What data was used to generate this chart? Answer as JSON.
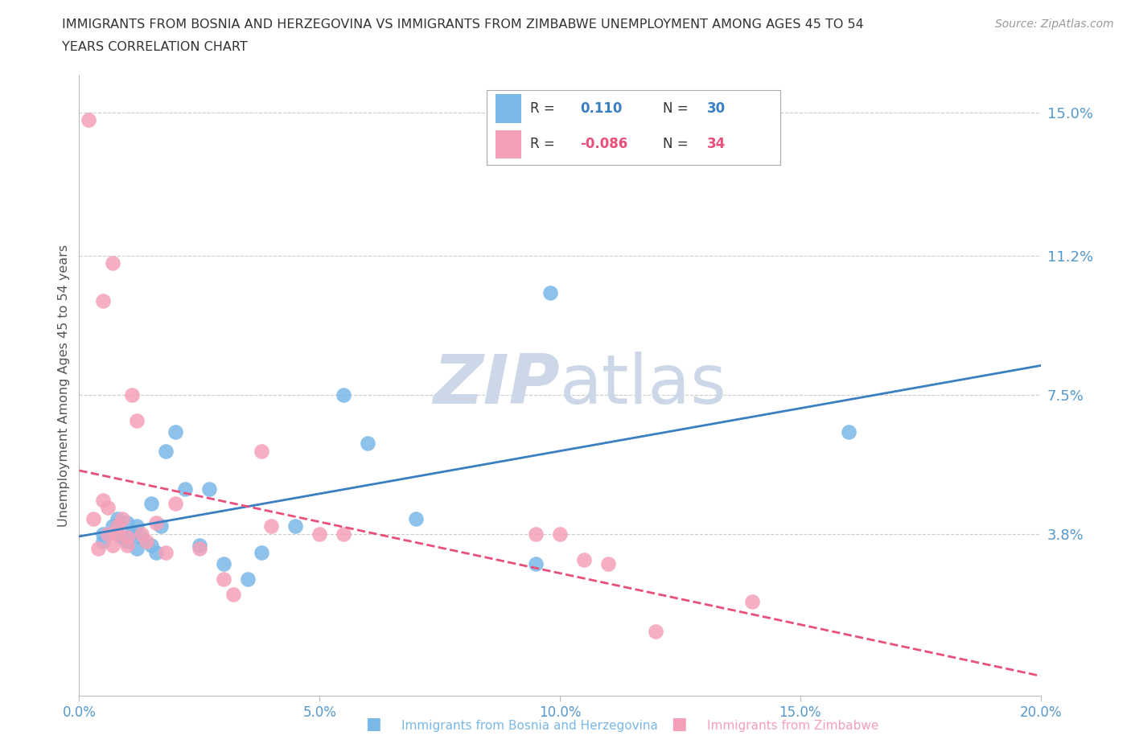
{
  "title_line1": "IMMIGRANTS FROM BOSNIA AND HERZEGOVINA VS IMMIGRANTS FROM ZIMBABWE UNEMPLOYMENT AMONG AGES 45 TO 54",
  "title_line2": "YEARS CORRELATION CHART",
  "source": "Source: ZipAtlas.com",
  "xlabel_bosnia": "Immigrants from Bosnia and Herzegovina",
  "xlabel_zimbabwe": "Immigrants from Zimbabwe",
  "ylabel": "Unemployment Among Ages 45 to 54 years",
  "xlim": [
    0.0,
    20.0
  ],
  "ylim": [
    -0.5,
    16.0
  ],
  "ytick_vals": [
    0.0,
    3.8,
    7.5,
    11.2,
    15.0
  ],
  "ytick_labels": [
    "",
    "3.8%",
    "7.5%",
    "11.2%",
    "15.0%"
  ],
  "xtick_vals": [
    0.0,
    5.0,
    10.0,
    15.0,
    20.0
  ],
  "xtick_labels": [
    "0.0%",
    "5.0%",
    "10.0%",
    "15.0%",
    "20.0%"
  ],
  "bosnia_color": "#7ab8e8",
  "zimbabwe_color": "#f4a0b8",
  "bosnia_line_color": "#3a7fc1",
  "zimbabwe_line_color": "#e8507a",
  "legend_R_bosnia": "0.110",
  "legend_N_bosnia": "30",
  "legend_R_zimbabwe": "-0.086",
  "legend_N_zimbabwe": "34",
  "bosnia_x": [
    0.5,
    0.5,
    0.7,
    0.8,
    0.9,
    1.0,
    1.0,
    1.1,
    1.2,
    1.2,
    1.3,
    1.5,
    1.5,
    1.6,
    1.7,
    1.8,
    2.0,
    2.2,
    2.5,
    2.7,
    3.0,
    3.5,
    3.8,
    4.5,
    5.5,
    6.0,
    7.0,
    9.5,
    9.8,
    16.0
  ],
  "bosnia_y": [
    3.8,
    3.6,
    4.0,
    4.2,
    3.7,
    4.1,
    3.6,
    3.8,
    3.4,
    4.0,
    3.7,
    4.6,
    3.5,
    3.3,
    4.0,
    6.0,
    6.5,
    5.0,
    3.5,
    5.0,
    3.0,
    2.6,
    3.3,
    4.0,
    7.5,
    6.2,
    4.2,
    3.0,
    10.2,
    6.5
  ],
  "zimbabwe_x": [
    0.2,
    0.3,
    0.4,
    0.5,
    0.5,
    0.6,
    0.6,
    0.7,
    0.7,
    0.8,
    0.8,
    0.9,
    1.0,
    1.0,
    1.1,
    1.2,
    1.3,
    1.4,
    1.6,
    1.8,
    2.0,
    2.5,
    3.0,
    3.2,
    3.8,
    4.0,
    5.0,
    5.5,
    9.5,
    10.0,
    10.5,
    11.0,
    12.0,
    14.0
  ],
  "zimbabwe_y": [
    14.8,
    4.2,
    3.4,
    4.7,
    10.0,
    3.8,
    4.5,
    3.5,
    11.0,
    3.8,
    4.0,
    4.2,
    3.5,
    3.7,
    7.5,
    6.8,
    3.8,
    3.6,
    4.1,
    3.3,
    4.6,
    3.4,
    2.6,
    2.2,
    6.0,
    4.0,
    3.8,
    3.8,
    3.8,
    3.8,
    3.1,
    3.0,
    1.2,
    2.0
  ],
  "grid_color": "#cccccc",
  "background_color": "#ffffff",
  "watermark_color": "#ccd8e8"
}
